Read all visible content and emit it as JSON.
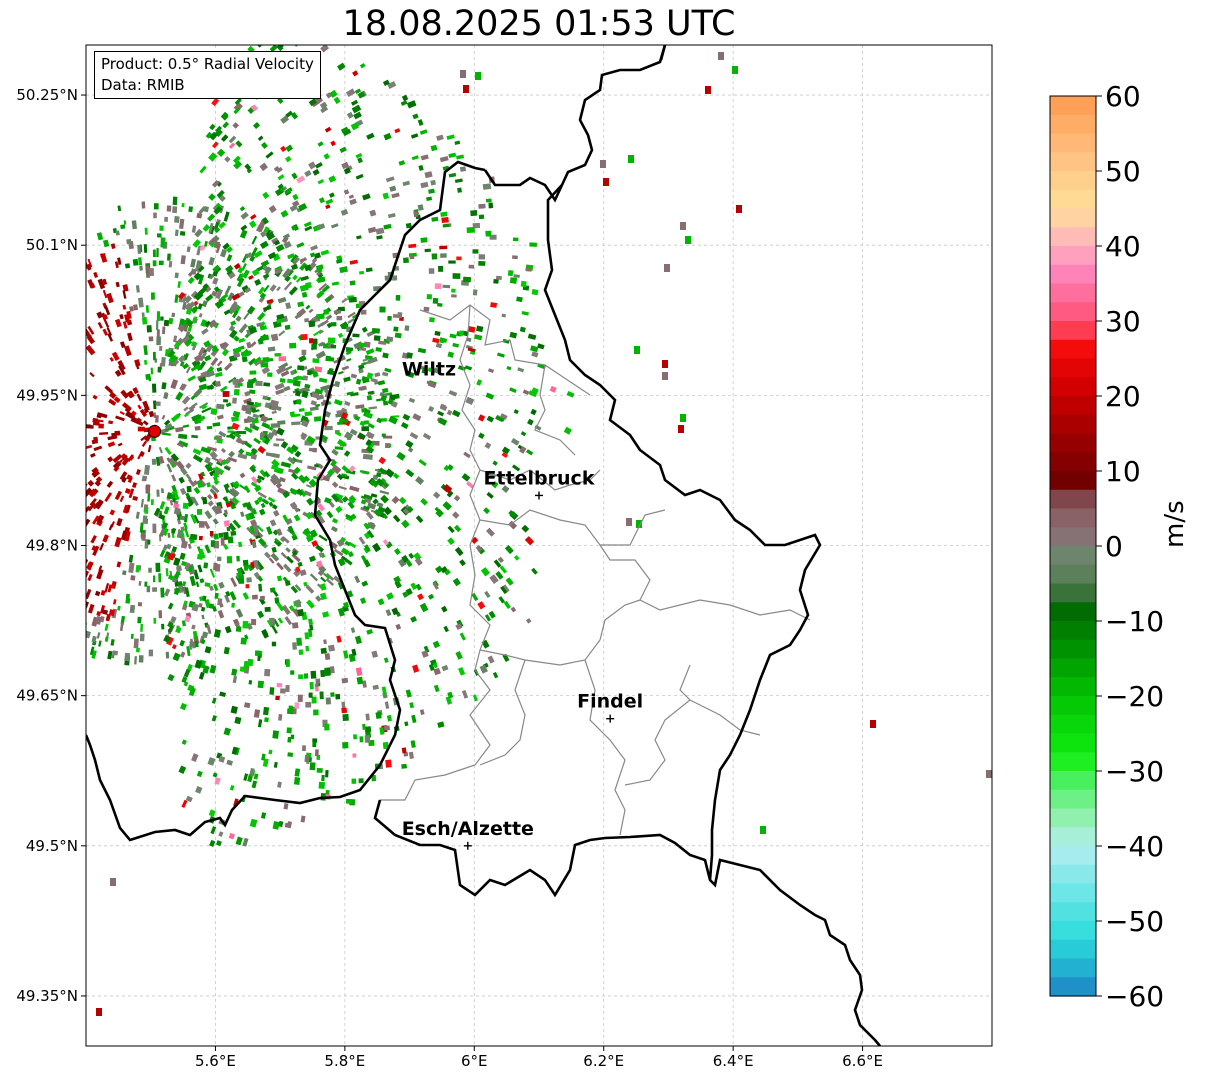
{
  "title": "18.08.2025 01:53 UTC",
  "info": {
    "product": "Product: 0.5° Radial Velocity",
    "source": "Data: RMIB"
  },
  "map": {
    "lon_range": [
      5.4,
      6.8
    ],
    "lat_range": [
      49.3,
      50.3
    ],
    "x_ticks": [
      {
        "value": 5.6,
        "label": "5.6°E"
      },
      {
        "value": 5.8,
        "label": "5.8°E"
      },
      {
        "value": 6.0,
        "label": "6°E"
      },
      {
        "value": 6.2,
        "label": "6.2°E"
      },
      {
        "value": 6.4,
        "label": "6.4°E"
      },
      {
        "value": 6.6,
        "label": "6.6°E"
      }
    ],
    "y_ticks": [
      {
        "value": 49.35,
        "label": "49.35°N"
      },
      {
        "value": 49.5,
        "label": "49.5°N"
      },
      {
        "value": 49.65,
        "label": "49.65°N"
      },
      {
        "value": 49.8,
        "label": "49.8°N"
      },
      {
        "value": 49.95,
        "label": "49.95°N"
      },
      {
        "value": 50.1,
        "label": "50.1°N"
      },
      {
        "value": 50.25,
        "label": "50.25°N"
      }
    ],
    "gridlines": true,
    "radar_site": {
      "lon": 5.506,
      "lat": 49.914
    },
    "cities": [
      {
        "name": "Wiltz",
        "lon": 5.93,
        "lat": 49.97,
        "marker": false
      },
      {
        "name": "Ettelbruck",
        "lon": 6.1,
        "lat": 49.85,
        "marker": true
      },
      {
        "name": "Findel",
        "lon": 6.21,
        "lat": 49.627,
        "marker": true
      },
      {
        "name": "Esch/Alzette",
        "lon": 5.99,
        "lat": 49.5,
        "marker": true
      }
    ]
  },
  "colorbar": {
    "label": "m/s",
    "min": -60,
    "max": 60,
    "ticks": [
      {
        "value": 60,
        "label": "60"
      },
      {
        "value": 50,
        "label": "50"
      },
      {
        "value": 40,
        "label": "40"
      },
      {
        "value": 30,
        "label": "30"
      },
      {
        "value": 20,
        "label": "20"
      },
      {
        "value": 10,
        "label": "10"
      },
      {
        "value": 0,
        "label": "0"
      },
      {
        "value": -10,
        "label": "−10"
      },
      {
        "value": -20,
        "label": "−20"
      },
      {
        "value": -30,
        "label": "−30"
      },
      {
        "value": -40,
        "label": "−40"
      },
      {
        "value": -50,
        "label": "−50"
      },
      {
        "value": -60,
        "label": "−60"
      }
    ],
    "stops": [
      {
        "value": -60,
        "color": "#1f7fc4"
      },
      {
        "value": -56,
        "color": "#22b4d2"
      },
      {
        "value": -52,
        "color": "#30dcdc"
      },
      {
        "value": -46,
        "color": "#6fe6e6"
      },
      {
        "value": -40,
        "color": "#b4eef0"
      },
      {
        "value": -36,
        "color": "#8ef0a8"
      },
      {
        "value": -31,
        "color": "#44f05c"
      },
      {
        "value": -28,
        "color": "#10ee10"
      },
      {
        "value": -20,
        "color": "#02c202"
      },
      {
        "value": -13,
        "color": "#018c01"
      },
      {
        "value": -7,
        "color": "#015f01"
      },
      {
        "value": -6,
        "color": "#4d7a4d"
      },
      {
        "value": -1,
        "color": "#6f856f"
      },
      {
        "value": 0,
        "color": "#857a7a"
      },
      {
        "value": 5,
        "color": "#8a5a60"
      },
      {
        "value": 7,
        "color": "#7a3a40"
      },
      {
        "value": 8,
        "color": "#6d0000"
      },
      {
        "value": 15,
        "color": "#a00000"
      },
      {
        "value": 22,
        "color": "#d80000"
      },
      {
        "value": 28,
        "color": "#ff1010"
      },
      {
        "value": 29,
        "color": "#ff4a68"
      },
      {
        "value": 36,
        "color": "#ff80b8"
      },
      {
        "value": 40,
        "color": "#ffb0c0"
      },
      {
        "value": 45,
        "color": "#ffe098"
      },
      {
        "value": 52,
        "color": "#ffc080"
      },
      {
        "value": 60,
        "color": "#ff9a50"
      }
    ]
  }
}
